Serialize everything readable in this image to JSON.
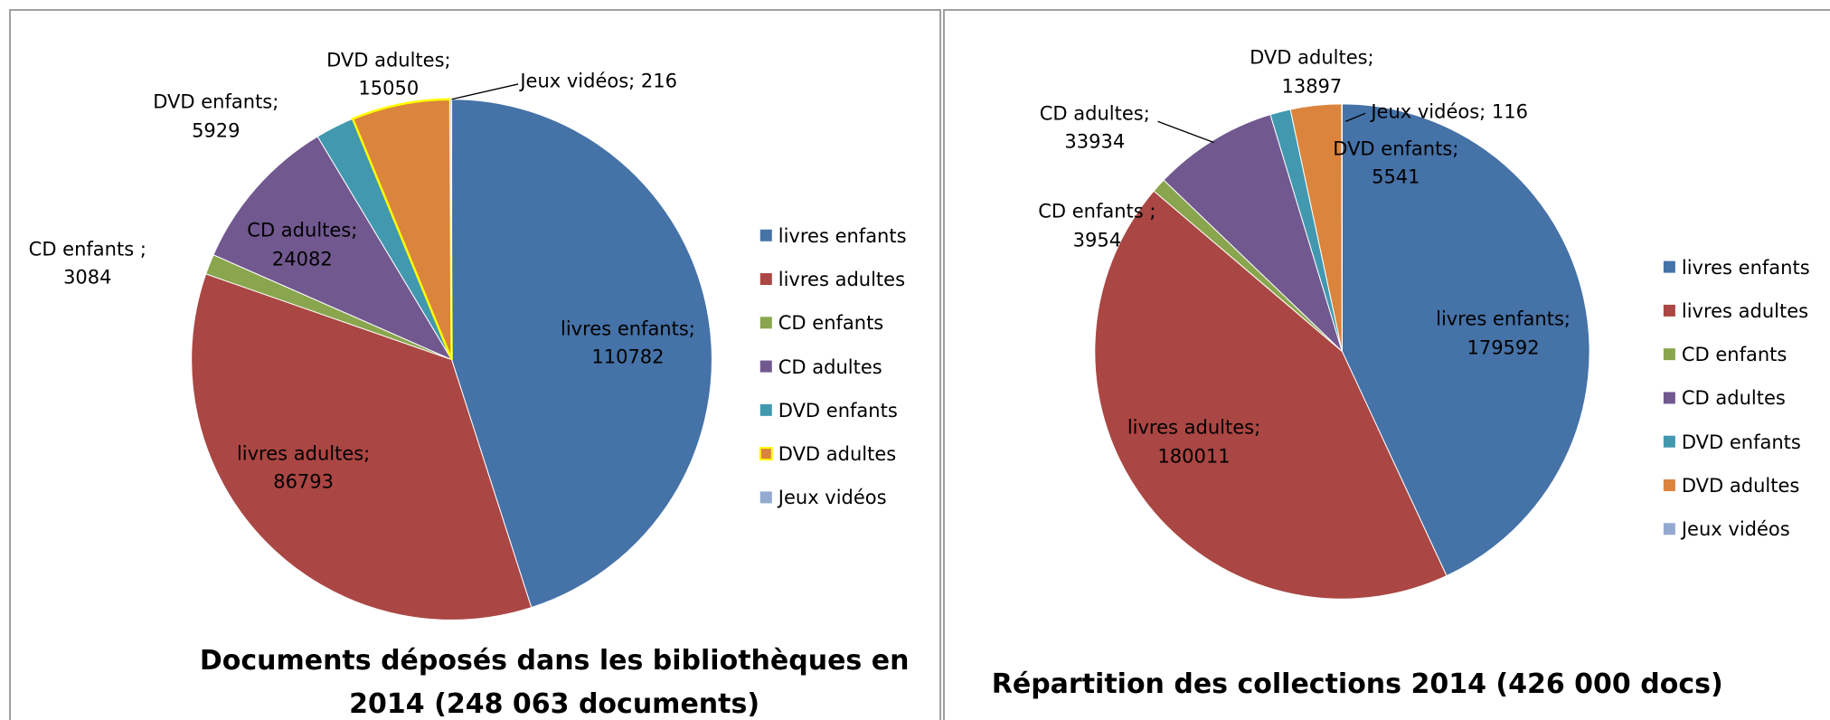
{
  "chart_data": [
    {
      "type": "pie",
      "title": "Documents déposés dans les bibliothèques en 2014 (248 063 documents)",
      "categories": [
        "livres enfants",
        "livres adultes",
        "CD enfants",
        "CD adultes",
        "DVD enfants",
        "DVD adultes",
        "Jeux vidéos"
      ],
      "values": [
        110782,
        86793,
        3084,
        24082,
        5929,
        15050,
        216
      ],
      "value_labels": [
        "livres enfants; 110782",
        "livres adultes; 86793",
        "CD enfants ; 3084",
        "CD adultes; 24082",
        "DVD enfants; 5929",
        "DVD adultes; 15050",
        "Jeux vidéos; 216"
      ],
      "colors": [
        "#4572a7",
        "#aa4643",
        "#89a54e",
        "#71588f",
        "#4198af",
        "#db843d",
        "#93a9cf"
      ],
      "outlines": [
        null,
        null,
        null,
        null,
        null,
        "#ffff00",
        null
      ],
      "legend": "right"
    },
    {
      "type": "pie",
      "title": "Répartition des collections 2014 (426 000 docs)",
      "categories": [
        "livres enfants",
        "livres adultes",
        "CD enfants",
        "CD adultes",
        "DVD enfants",
        "DVD adultes",
        "Jeux vidéos"
      ],
      "values": [
        179592,
        180011,
        3954,
        33934,
        5541,
        13897,
        116
      ],
      "value_labels": [
        "livres enfants; 179592",
        "livres adultes; 180011",
        "CD enfants ; 3954",
        "CD adultes; 33934",
        "DVD enfants; 5541",
        "DVD adultes; 13897",
        "Jeux vidéos; 116"
      ],
      "colors": [
        "#4572a7",
        "#aa4643",
        "#89a54e",
        "#71588f",
        "#4198af",
        "#db843d",
        "#93a9cf"
      ],
      "outlines": [
        null,
        null,
        null,
        null,
        null,
        null,
        null
      ],
      "legend": "right"
    }
  ]
}
